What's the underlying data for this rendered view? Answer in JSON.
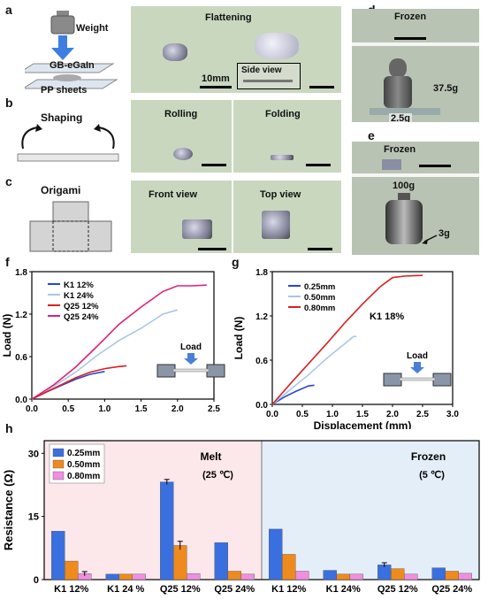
{
  "panels": {
    "a": {
      "letter": "a",
      "weight_label": "Weight",
      "gb_label": "GB-eGaIn",
      "pp_label": "PP sheets",
      "photo_title": "Flattening",
      "side_view": "Side view",
      "scale": "10mm"
    },
    "b": {
      "letter": "b",
      "title": "Shaping",
      "rolling": "Rolling",
      "folding": "Folding"
    },
    "c": {
      "letter": "c",
      "title": "Origami",
      "front": "Front view",
      "top": "Top view"
    },
    "d": {
      "letter": "d",
      "frozen": "Frozen",
      "w1": "37.5g",
      "w2": "2.5g"
    },
    "e": {
      "letter": "e",
      "frozen": "Frozen",
      "w1": "100g",
      "w2": "3g"
    },
    "f": {
      "letter": "f"
    },
    "g": {
      "letter": "g"
    },
    "h": {
      "letter": "h"
    }
  },
  "chart_data": [
    {
      "id": "f",
      "type": "line",
      "xlabel": "Displacement (mm)",
      "ylabel": "Load (N)",
      "xlim": [
        0,
        2.5
      ],
      "ylim": [
        0,
        1.8
      ],
      "xticks": [
        0,
        0.5,
        1.0,
        1.5,
        2.0,
        2.5
      ],
      "yticks": [
        0,
        0.6,
        1.2,
        1.8
      ],
      "xticklabels": [
        "0.0",
        "0.5",
        "1.0",
        "1.5",
        "2.0",
        "2.5"
      ],
      "yticklabels": [
        "0.0",
        "0.6",
        "1.2",
        "1.8"
      ],
      "inset_label": "Load",
      "series": [
        {
          "name": "K1 12%",
          "color": "#2a44d8",
          "x": [
            0,
            0.2,
            0.4,
            0.6,
            0.8,
            1.0
          ],
          "y": [
            0,
            0.1,
            0.19,
            0.28,
            0.35,
            0.39
          ]
        },
        {
          "name": "K1 24%",
          "color": "#a9c6ea",
          "x": [
            0,
            0.3,
            0.6,
            0.9,
            1.2,
            1.5,
            1.8,
            2.0
          ],
          "y": [
            0,
            0.18,
            0.38,
            0.62,
            0.83,
            1.0,
            1.2,
            1.26
          ]
        },
        {
          "name": "Q25 12%",
          "color": "#d92020",
          "x": [
            0,
            0.2,
            0.4,
            0.6,
            0.8,
            1.0,
            1.2,
            1.3
          ],
          "y": [
            0,
            0.1,
            0.2,
            0.3,
            0.38,
            0.43,
            0.46,
            0.47
          ]
        },
        {
          "name": "Q25 24%",
          "color": "#e0207a",
          "x": [
            0,
            0.3,
            0.6,
            0.9,
            1.2,
            1.5,
            1.8,
            2.0,
            2.2,
            2.4
          ],
          "y": [
            0,
            0.2,
            0.45,
            0.75,
            1.06,
            1.3,
            1.52,
            1.6,
            1.6,
            1.61
          ]
        }
      ]
    },
    {
      "id": "g",
      "type": "line",
      "xlabel": "Displacement (mm)",
      "ylabel": "Load (N)",
      "xlim": [
        0,
        3.0
      ],
      "ylim": [
        0,
        1.8
      ],
      "xticks": [
        0,
        0.5,
        1.0,
        1.5,
        2.0,
        2.5,
        3.0
      ],
      "yticks": [
        0,
        0.6,
        1.2,
        1.8
      ],
      "xticklabels": [
        "0.0",
        "0.5",
        "1.0",
        "1.5",
        "2.0",
        "2.5",
        "3.0"
      ],
      "yticklabels": [
        "0.0",
        "0.6",
        "1.2",
        "1.8"
      ],
      "annotation": "K1 18%",
      "inset_label": "Load",
      "series": [
        {
          "name": "0.25mm",
          "color": "#2a44d8",
          "x": [
            0,
            0.2,
            0.4,
            0.6,
            0.7
          ],
          "y": [
            0,
            0.1,
            0.18,
            0.25,
            0.26
          ]
        },
        {
          "name": "0.50mm",
          "color": "#a9c6ea",
          "x": [
            0,
            0.3,
            0.6,
            0.9,
            1.2,
            1.35,
            1.4
          ],
          "y": [
            0,
            0.2,
            0.4,
            0.62,
            0.82,
            0.92,
            0.92
          ]
        },
        {
          "name": "0.80mm",
          "color": "#d92020",
          "x": [
            0,
            0.3,
            0.6,
            0.9,
            1.2,
            1.5,
            1.8,
            2.0,
            2.2,
            2.5
          ],
          "y": [
            0,
            0.28,
            0.55,
            0.82,
            1.1,
            1.36,
            1.6,
            1.72,
            1.74,
            1.75
          ]
        }
      ]
    },
    {
      "id": "h",
      "type": "bar",
      "ylabel": "Resistance (Ω)",
      "ylim": [
        0,
        33
      ],
      "yticks": [
        0,
        15,
        30
      ],
      "categories": [
        "K1 12%",
        "K1 24 %",
        "Q25 12%",
        "Q25 24%",
        "K1 12%",
        "K1 24%",
        "Q25 12%",
        "Q25 24%"
      ],
      "region_labels": [
        {
          "title": "Melt",
          "sub": "(25 ℃)"
        },
        {
          "title": "Frozen",
          "sub": "(5 ℃)"
        }
      ],
      "series": [
        {
          "name": "0.25mm",
          "color": "#3a6fe0",
          "values": [
            11.5,
            1.3,
            23.2,
            8.8,
            12.0,
            2.2,
            3.5,
            2.8
          ],
          "err": [
            0,
            0,
            0.6,
            0,
            0,
            0,
            0.5,
            0
          ]
        },
        {
          "name": "0.50mm",
          "color": "#ee8a1e",
          "values": [
            4.4,
            1.3,
            8.1,
            2.0,
            6.0,
            1.3,
            2.6,
            2.0
          ],
          "err": [
            0,
            0,
            1.0,
            0,
            0,
            0,
            0,
            0
          ]
        },
        {
          "name": "0.80mm",
          "color": "#f08ee0",
          "values": [
            1.4,
            1.3,
            1.4,
            1.3,
            2.0,
            1.3,
            1.3,
            1.5
          ],
          "err": [
            0.5,
            0,
            0,
            0,
            0,
            0,
            0,
            0
          ]
        }
      ]
    }
  ]
}
